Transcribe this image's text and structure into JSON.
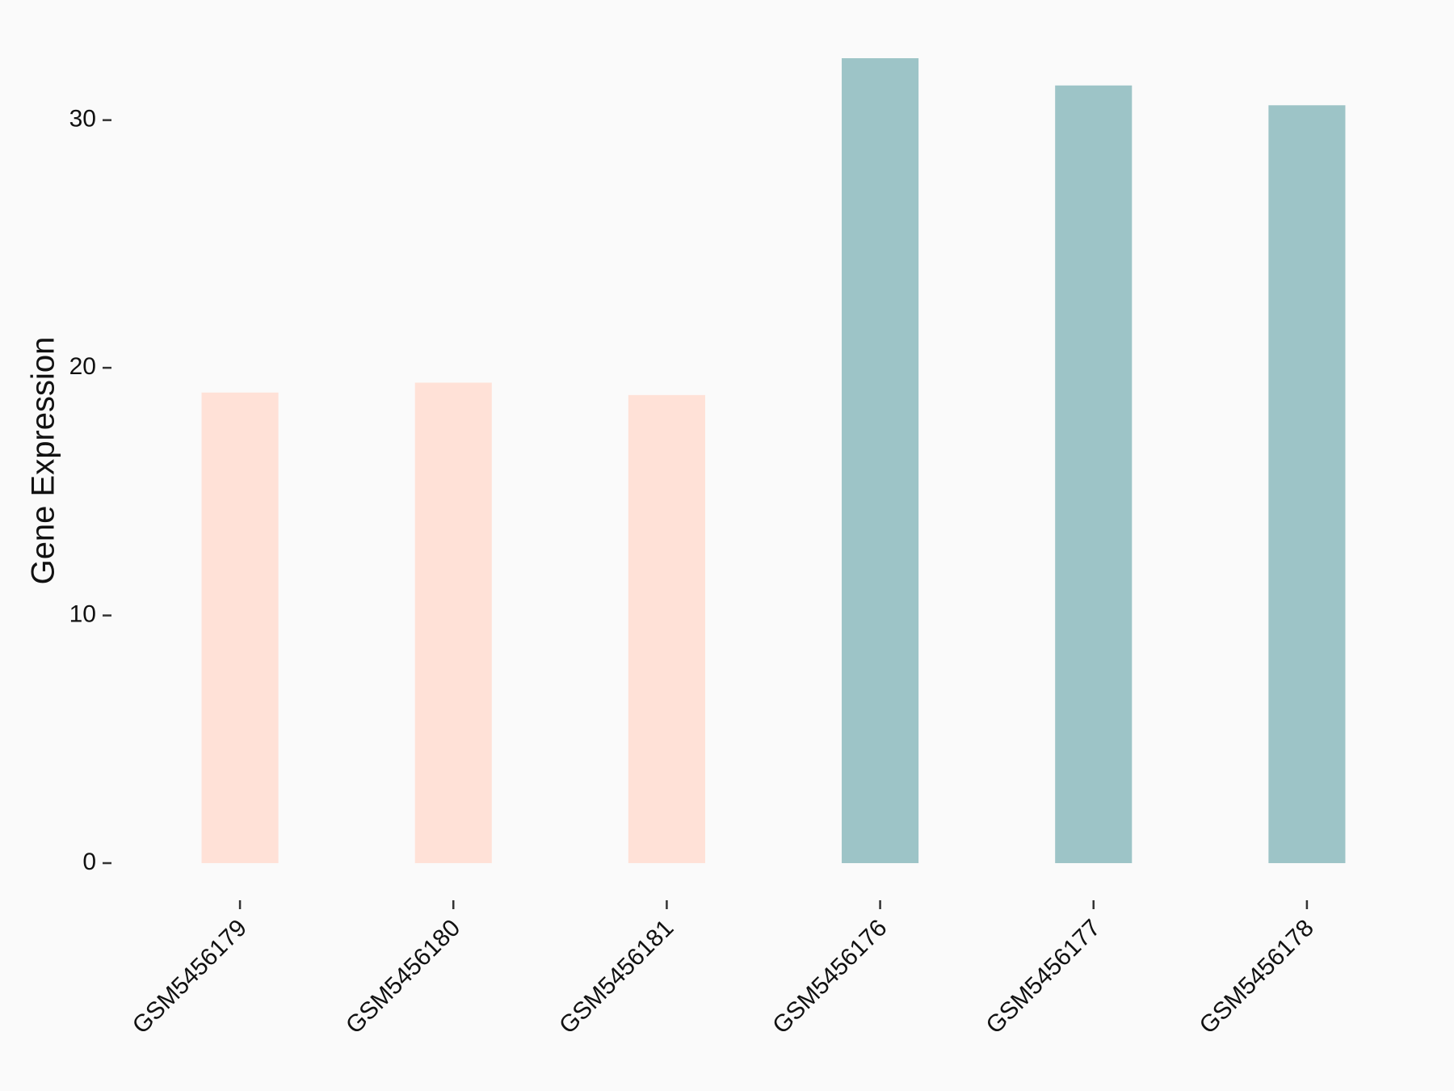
{
  "chart_data": {
    "type": "bar",
    "y_label": "Gene Expression",
    "categories": [
      "GSM5456179",
      "GSM5456180",
      "GSM5456181",
      "GSM5456176",
      "GSM5456177",
      "GSM5456178"
    ],
    "values": [
      19.0,
      19.4,
      18.9,
      32.5,
      31.4,
      30.6
    ],
    "colors": [
      "#ffe1d7",
      "#ffe1d7",
      "#ffe1d7",
      "#9dc4c7",
      "#9dc4c7",
      "#9dc4c7"
    ],
    "ylim": [
      -1.5,
      34.1
    ],
    "yticks": [
      0,
      10,
      20,
      30
    ]
  }
}
